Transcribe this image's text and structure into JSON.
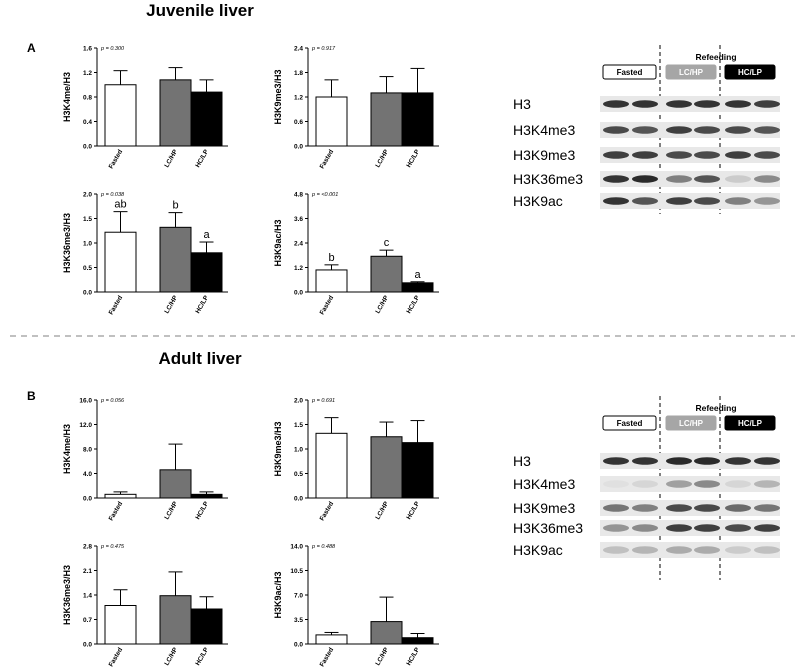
{
  "figure": {
    "section_a": {
      "title": "Juvenile liver",
      "letter": "A"
    },
    "section_b": {
      "title": "Adult liver",
      "letter": "B"
    }
  },
  "groups": [
    "Fasted",
    "LC/HP",
    "HC/LP"
  ],
  "colors": {
    "Fasted": "#ffffff",
    "LC/HP": "#737373",
    "HC/LP": "#000000"
  },
  "chart_data": [
    {
      "id": "A1",
      "type": "bar",
      "ylabel": "H3K4me/H3",
      "pvalue": "p = 0.300",
      "categories": [
        "Fasted",
        "LC/HP",
        "HC/LP"
      ],
      "values": [
        1.0,
        1.08,
        0.88
      ],
      "errors": [
        0.23,
        0.2,
        0.2
      ],
      "ylim": [
        0,
        1.6
      ],
      "yticks": [
        "0.0",
        "0.4",
        "0.8",
        "1.2",
        "1.6"
      ],
      "letters": []
    },
    {
      "id": "A2",
      "type": "bar",
      "ylabel": "H3K9me3/H3",
      "pvalue": "p = 0.917",
      "categories": [
        "Fasted",
        "LC/HP",
        "HC/LP"
      ],
      "values": [
        1.2,
        1.3,
        1.3
      ],
      "errors": [
        0.42,
        0.4,
        0.6
      ],
      "ylim": [
        0,
        2.4
      ],
      "yticks": [
        "0.0",
        "0.6",
        "1.2",
        "1.8",
        "2.4"
      ],
      "letters": []
    },
    {
      "id": "A3",
      "type": "bar",
      "ylabel": "H3K36me3/H3",
      "pvalue": "p = 0.038",
      "categories": [
        "Fasted",
        "LC/HP",
        "HC/LP"
      ],
      "values": [
        1.22,
        1.32,
        0.8
      ],
      "errors": [
        0.42,
        0.3,
        0.22
      ],
      "ylim": [
        0,
        2.0
      ],
      "yticks": [
        "0.0",
        "0.5",
        "1.0",
        "1.5",
        "2.0"
      ],
      "letters": [
        "ab",
        "b",
        "a"
      ]
    },
    {
      "id": "A4",
      "type": "bar",
      "ylabel": "H3K9ac/H3",
      "pvalue": "p = <0.001",
      "categories": [
        "Fasted",
        "LC/HP",
        "HC/LP"
      ],
      "values": [
        1.08,
        1.75,
        0.45
      ],
      "errors": [
        0.25,
        0.3,
        0.05
      ],
      "ylim": [
        0,
        4.8
      ],
      "yticks": [
        "0.0",
        "1.2",
        "2.4",
        "3.6",
        "4.8"
      ],
      "letters": [
        "b",
        "c",
        "a"
      ]
    },
    {
      "id": "B1",
      "type": "bar",
      "ylabel": "H3K4me/H3",
      "pvalue": "p = 0.056",
      "categories": [
        "Fasted",
        "LC/HP",
        "HC/LP"
      ],
      "values": [
        0.6,
        4.6,
        0.6
      ],
      "errors": [
        0.4,
        4.2,
        0.4
      ],
      "ylim": [
        0,
        16.0
      ],
      "yticks": [
        "0.0",
        "4.0",
        "8.0",
        "12.0",
        "16.0"
      ],
      "letters": []
    },
    {
      "id": "B2",
      "type": "bar",
      "ylabel": "H3K9me3/H3",
      "pvalue": "p = 0.691",
      "categories": [
        "Fasted",
        "LC/HP",
        "HC/LP"
      ],
      "values": [
        1.32,
        1.25,
        1.13
      ],
      "errors": [
        0.32,
        0.3,
        0.45
      ],
      "ylim": [
        0,
        2.0
      ],
      "yticks": [
        "0.0",
        "0.5",
        "1.0",
        "1.5",
        "2.0"
      ],
      "letters": []
    },
    {
      "id": "B3",
      "type": "bar",
      "ylabel": "H3K36me3/H3",
      "pvalue": "p = 0.475",
      "categories": [
        "Fasted",
        "LC/HP",
        "HC/LP"
      ],
      "values": [
        1.1,
        1.38,
        1.0
      ],
      "errors": [
        0.45,
        0.68,
        0.35
      ],
      "ylim": [
        0,
        2.8
      ],
      "yticks": [
        "0.0",
        "0.7",
        "1.4",
        "2.1",
        "2.8"
      ],
      "letters": []
    },
    {
      "id": "B4",
      "type": "bar",
      "ylabel": "H3K9ac/H3",
      "pvalue": "p = 0.488",
      "categories": [
        "Fasted",
        "LC/HP",
        "HC/LP"
      ],
      "values": [
        1.3,
        3.2,
        0.9
      ],
      "errors": [
        0.35,
        3.5,
        0.6
      ],
      "ylim": [
        0,
        14.0
      ],
      "yticks": [
        "0.0",
        "3.5",
        "7.0",
        "10.5",
        "14.0"
      ],
      "letters": []
    }
  ],
  "blots": [
    {
      "id": "blotA",
      "header": "Refeeding",
      "legend": [
        "Fasted",
        "LC/HP",
        "HC/LP"
      ],
      "rows": [
        {
          "label": "H3",
          "intensity": [
            0.85,
            0.85,
            0.85,
            0.85,
            0.85,
            0.8
          ]
        },
        {
          "label": "H3K4me3",
          "intensity": [
            0.75,
            0.7,
            0.8,
            0.75,
            0.75,
            0.7
          ]
        },
        {
          "label": "H3K9me3",
          "intensity": [
            0.8,
            0.8,
            0.75,
            0.75,
            0.8,
            0.75
          ]
        },
        {
          "label": "H3K36me3",
          "intensity": [
            0.85,
            0.9,
            0.5,
            0.7,
            0.15,
            0.45
          ]
        },
        {
          "label": "H3K9ac",
          "intensity": [
            0.85,
            0.7,
            0.8,
            0.75,
            0.5,
            0.4
          ]
        }
      ]
    },
    {
      "id": "blotB",
      "header": "Refeeding",
      "legend": [
        "Fasted",
        "LC/HP",
        "HC/LP"
      ],
      "rows": [
        {
          "label": "H3",
          "intensity": [
            0.85,
            0.85,
            0.9,
            0.9,
            0.85,
            0.85
          ]
        },
        {
          "label": "H3K4me3",
          "intensity": [
            0.05,
            0.1,
            0.35,
            0.45,
            0.1,
            0.25
          ]
        },
        {
          "label": "H3K9me3",
          "intensity": [
            0.55,
            0.5,
            0.75,
            0.75,
            0.6,
            0.55
          ]
        },
        {
          "label": "H3K36me3",
          "intensity": [
            0.4,
            0.45,
            0.8,
            0.8,
            0.75,
            0.8
          ]
        },
        {
          "label": "H3K9ac",
          "intensity": [
            0.2,
            0.25,
            0.3,
            0.3,
            0.15,
            0.2
          ]
        }
      ]
    }
  ]
}
